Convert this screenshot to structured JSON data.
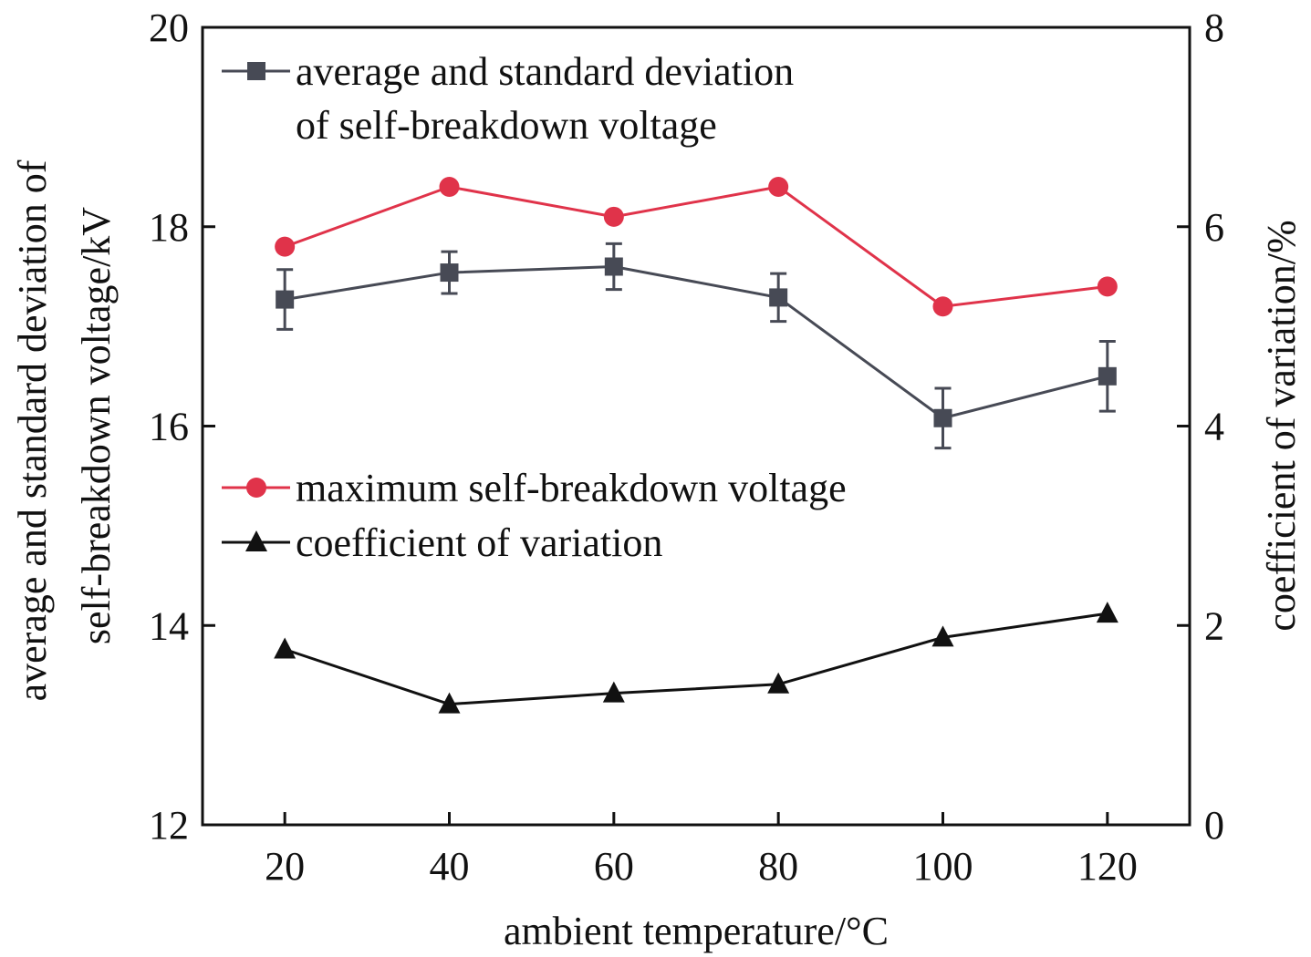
{
  "chart_data": {
    "type": "line",
    "x": [
      20,
      40,
      60,
      80,
      100,
      120
    ],
    "xlim": [
      10,
      130
    ],
    "xticks": [
      20,
      40,
      60,
      80,
      100,
      120
    ],
    "xlabel": "ambient temperature/°C",
    "ylabel_left": [
      "average and standard deviation of",
      "self-breakdown voltage/kV"
    ],
    "ylim_left": [
      12,
      20
    ],
    "yticks_left": [
      12,
      14,
      16,
      18,
      20
    ],
    "ylabel_right": "coefficient of variation/%",
    "ylim_right": [
      0,
      8
    ],
    "yticks_right": [
      0,
      2,
      4,
      6,
      8
    ],
    "grid": false,
    "series": [
      {
        "key": "avg",
        "name": [
          "average and standard deviation",
          "of self-breakdown voltage"
        ],
        "axis": "left",
        "marker": "square",
        "color": "#474a55",
        "values": [
          17.27,
          17.54,
          17.6,
          17.29,
          16.08,
          16.5
        ],
        "error": [
          0.3,
          0.21,
          0.23,
          0.24,
          0.3,
          0.35
        ]
      },
      {
        "key": "max",
        "name": [
          "maximum self-breakdown voltage"
        ],
        "axis": "left",
        "marker": "circle",
        "color": "#e0334a",
        "values": [
          17.8,
          18.4,
          18.1,
          18.4,
          17.2,
          17.4
        ]
      },
      {
        "key": "cv",
        "name": [
          "coefficient of variation"
        ],
        "axis": "right",
        "marker": "triangle",
        "color": "#111111",
        "values": [
          1.76,
          1.21,
          1.32,
          1.41,
          1.88,
          2.12
        ]
      }
    ],
    "legend": [
      {
        "series": "avg",
        "placement": "top-left"
      },
      {
        "series": "max",
        "placement": "middle-left"
      },
      {
        "series": "cv",
        "placement": "middle-left"
      }
    ]
  }
}
